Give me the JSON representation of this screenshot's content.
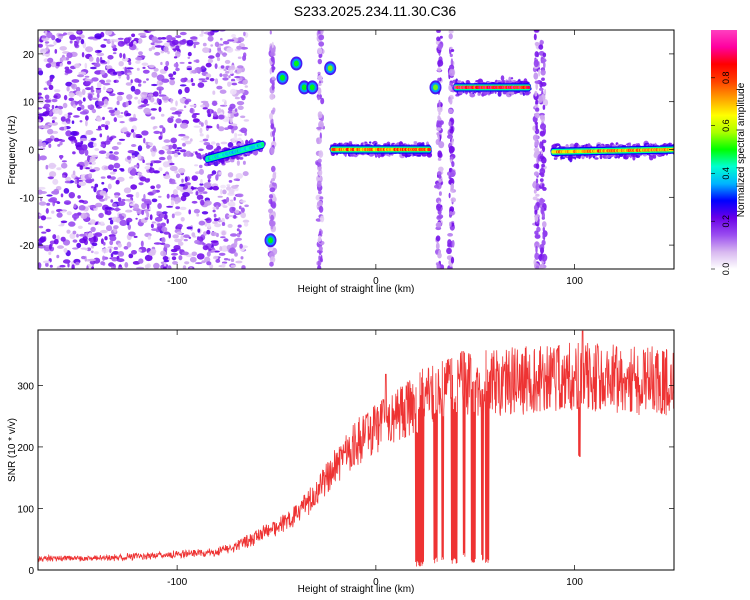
{
  "title": "S233.2025.234.11.30.C36",
  "chart_data": [
    {
      "type": "heatmap",
      "xlabel": "Height of straight line (km)",
      "ylabel": "Frequency (Hz)",
      "xlim": [
        -170,
        150
      ],
      "ylim": [
        -25,
        25
      ],
      "xticks": [
        -100,
        0,
        100
      ],
      "yticks": [
        -20,
        -10,
        0,
        10,
        20
      ],
      "colorbar": {
        "label": "Normalized spectral amplitude",
        "range": [
          0,
          1
        ],
        "ticks": [
          0.0,
          0.2,
          0.4,
          0.6,
          0.8
        ],
        "tick_labels": [
          "0.0",
          "0.2",
          "0.4",
          "0.6",
          "0.8"
        ],
        "colors": [
          "#ffffff",
          "#d8b8f0",
          "#9a4cf0",
          "#6a00e8",
          "#0000ff",
          "#00b4ff",
          "#00ffd0",
          "#00ff00",
          "#aaff00",
          "#ffff00",
          "#ffa000",
          "#ff4000",
          "#ff0000",
          "#ff00a0",
          "#ff40c0"
        ]
      },
      "features": [
        {
          "kind": "noise-field",
          "x": [
            -170,
            -65
          ],
          "freq": [
            -25,
            25
          ],
          "amplitude": 0.18
        },
        {
          "kind": "scatter-column",
          "x": -52,
          "freq": [
            -25,
            25
          ],
          "amplitude": 0.12
        },
        {
          "kind": "scatter-column",
          "x": -28,
          "freq": [
            -25,
            25
          ],
          "amplitude": 0.12
        },
        {
          "kind": "scatter-column",
          "x": 32,
          "freq": [
            -25,
            25
          ],
          "amplitude": 0.15
        },
        {
          "kind": "scatter-column",
          "x": 38,
          "freq": [
            -25,
            25
          ],
          "amplitude": 0.15
        },
        {
          "kind": "scatter-column",
          "x": 81,
          "freq": [
            -25,
            25
          ],
          "amplitude": 0.15
        },
        {
          "kind": "scatter-column",
          "x": 84,
          "freq": [
            -25,
            25
          ],
          "amplitude": 0.15
        },
        {
          "kind": "ridge",
          "x": [
            -85,
            -57
          ],
          "freq_start": -2,
          "freq_end": 1,
          "amplitude": 0.45
        },
        {
          "kind": "ridge",
          "x": [
            -22,
            27
          ],
          "freq_start": 0,
          "freq_end": 0,
          "amplitude": 0.82
        },
        {
          "kind": "ridge",
          "x": 89,
          "x_end": 150,
          "freq_start": -0.5,
          "freq_end": 0,
          "amplitude": 0.78
        },
        {
          "kind": "ridge",
          "x": [
            40,
            77
          ],
          "freq_start": 13,
          "freq_end": 13,
          "amplitude": 0.95
        },
        {
          "kind": "blob",
          "x": -53,
          "freq": -19,
          "amplitude": 0.45
        },
        {
          "kind": "blob",
          "x": -47,
          "freq": 15,
          "amplitude": 0.45
        },
        {
          "kind": "blob",
          "x": -40,
          "freq": 18,
          "amplitude": 0.45
        },
        {
          "kind": "blob",
          "x": -36,
          "freq": 13,
          "amplitude": 0.45
        },
        {
          "kind": "blob",
          "x": -32,
          "freq": 13,
          "amplitude": 0.45
        },
        {
          "kind": "blob",
          "x": -23,
          "freq": 17,
          "amplitude": 0.5
        },
        {
          "kind": "blob",
          "x": 30,
          "freq": 13,
          "amplitude": 0.5
        }
      ]
    },
    {
      "type": "line",
      "xlabel": "Height of straight line (km)",
      "ylabel": "SNR (10 * v/v)",
      "xlim": [
        -170,
        150
      ],
      "ylim": [
        0,
        390
      ],
      "xticks": [
        -100,
        0,
        100
      ],
      "yticks": [
        0,
        100,
        200,
        300
      ],
      "color": "#ee3333",
      "trend": {
        "x": [
          -170,
          -130,
          -100,
          -80,
          -70,
          -60,
          -50,
          -40,
          -30,
          -20,
          -10,
          0,
          10,
          20,
          30,
          40,
          60,
          80,
          100,
          120,
          150
        ],
        "y": [
          18,
          20,
          25,
          30,
          38,
          55,
          70,
          90,
          125,
          170,
          205,
          230,
          250,
          270,
          290,
          300,
          305,
          310,
          315,
          310,
          305
        ]
      },
      "spread": 0.18,
      "dips": [
        {
          "x": [
            20,
            24
          ],
          "min": 5
        },
        {
          "x": [
            29,
            31
          ],
          "min": 10
        },
        {
          "x": [
            33,
            34
          ],
          "min": 15
        },
        {
          "x": [
            38,
            41
          ],
          "min": 10
        },
        {
          "x": [
            44,
            45
          ],
          "min": 20
        },
        {
          "x": [
            48,
            50
          ],
          "min": 10
        },
        {
          "x": [
            53,
            54
          ],
          "min": 15
        },
        {
          "x": [
            55,
            57
          ],
          "min": 10
        },
        {
          "x": [
            102,
            103
          ],
          "min": 180
        }
      ],
      "spikes": [
        {
          "x": 104,
          "y": 388
        },
        {
          "x": 5,
          "y": 318
        }
      ]
    }
  ]
}
